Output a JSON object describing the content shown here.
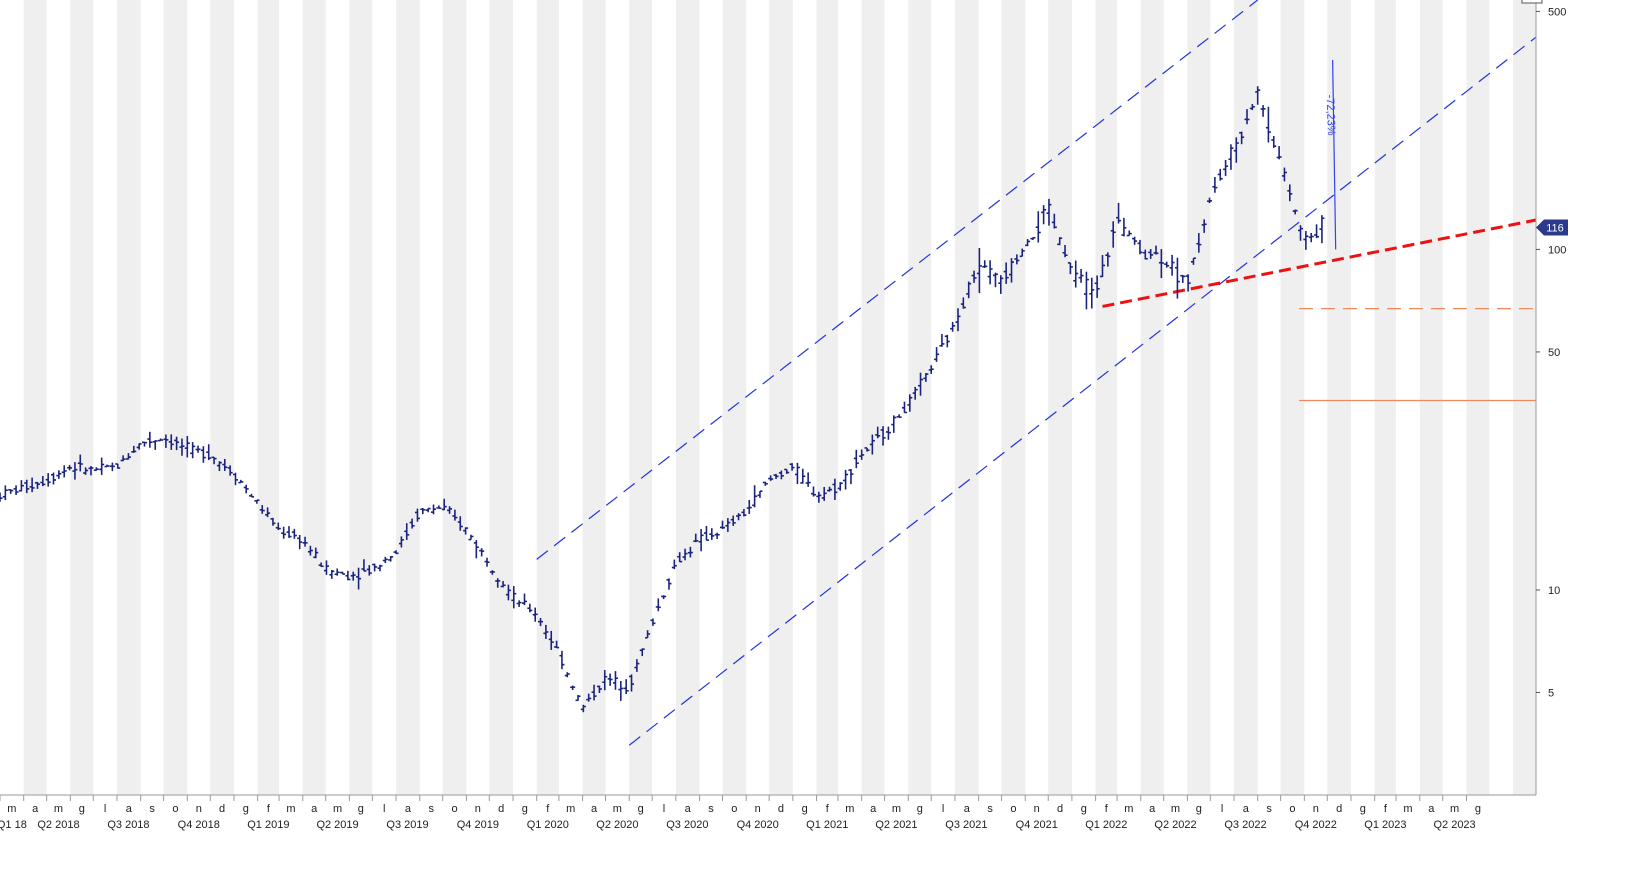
{
  "chart_data": {
    "type": "ohlc",
    "y_scale": "log",
    "ylim": [
      2.5,
      540
    ],
    "y_ticks": [
      5,
      10,
      50,
      100,
      500
    ],
    "y_tick_labels": [
      "5",
      "10",
      "50",
      "100",
      "500"
    ],
    "last_price_badge": "116",
    "last_price": 116,
    "x_start": "2018-03-01",
    "x_end": "2023-08-31",
    "month_labels": [
      "m",
      "a",
      "m",
      "g",
      "l",
      "a",
      "s",
      "o",
      "n",
      "d",
      "g",
      "f",
      "m",
      "a",
      "m",
      "g",
      "l",
      "a",
      "s",
      "o",
      "n",
      "d",
      "g",
      "f",
      "m",
      "a",
      "m",
      "g",
      "l",
      "a",
      "s",
      "o",
      "n",
      "d",
      "g",
      "f",
      "m",
      "a",
      "m",
      "g",
      "l",
      "a",
      "s",
      "o",
      "n",
      "d",
      "g",
      "f",
      "m",
      "a",
      "m",
      "g",
      "l",
      "a",
      "s",
      "o",
      "n",
      "d",
      "g",
      "f",
      "m",
      "a",
      "m",
      "g"
    ],
    "quarter_labels": [
      "Q1 18",
      "Q2 2018",
      "Q3 2018",
      "Q4 2018",
      "Q1 2019",
      "Q2 2019",
      "Q3 2019",
      "Q4 2019",
      "Q1 2020",
      "Q2 2020",
      "Q3 2020",
      "Q4 2020",
      "Q1 2021",
      "Q2 2021",
      "Q3 2021",
      "Q4 2021",
      "Q1 2022",
      "Q2 2022",
      "Q3 2022",
      "Q4 2022",
      "Q1 2023",
      "Q2 2023"
    ],
    "series": [
      {
        "values": [
          {
            "d": "2018-03-01",
            "c": 19
          },
          {
            "d": "2018-04-01",
            "c": 20
          },
          {
            "d": "2018-05-01",
            "c": 21
          },
          {
            "d": "2018-06-01",
            "c": 23
          },
          {
            "d": "2018-07-01",
            "c": 22.5
          },
          {
            "d": "2018-08-01",
            "c": 23
          },
          {
            "d": "2018-09-01",
            "c": 27
          },
          {
            "d": "2018-10-01",
            "c": 28
          },
          {
            "d": "2018-11-01",
            "c": 26
          },
          {
            "d": "2018-12-01",
            "c": 25
          },
          {
            "d": "2019-01-01",
            "c": 22
          },
          {
            "d": "2019-02-01",
            "c": 18
          },
          {
            "d": "2019-03-01",
            "c": 15
          },
          {
            "d": "2019-04-01",
            "c": 14
          },
          {
            "d": "2019-05-01",
            "c": 11.5
          },
          {
            "d": "2019-06-01",
            "c": 11
          },
          {
            "d": "2019-07-01",
            "c": 11.5
          },
          {
            "d": "2019-08-01",
            "c": 13
          },
          {
            "d": "2019-09-01",
            "c": 17
          },
          {
            "d": "2019-10-01",
            "c": 17.5
          },
          {
            "d": "2019-11-01",
            "c": 15
          },
          {
            "d": "2019-12-01",
            "c": 12
          },
          {
            "d": "2020-01-01",
            "c": 9.5
          },
          {
            "d": "2020-02-01",
            "c": 8.5
          },
          {
            "d": "2020-03-01",
            "c": 6.5
          },
          {
            "d": "2020-04-01",
            "c": 4.5
          },
          {
            "d": "2020-05-01",
            "c": 5.5
          },
          {
            "d": "2020-06-01",
            "c": 5.2
          },
          {
            "d": "2020-07-01",
            "c": 8
          },
          {
            "d": "2020-08-01",
            "c": 12
          },
          {
            "d": "2020-09-01",
            "c": 14
          },
          {
            "d": "2020-10-01",
            "c": 15
          },
          {
            "d": "2020-11-01",
            "c": 17
          },
          {
            "d": "2020-12-01",
            "c": 21
          },
          {
            "d": "2021-01-01",
            "c": 23
          },
          {
            "d": "2021-02-01",
            "c": 19
          },
          {
            "d": "2021-03-01",
            "c": 20
          },
          {
            "d": "2021-04-01",
            "c": 25
          },
          {
            "d": "2021-05-01",
            "c": 29
          },
          {
            "d": "2021-06-01",
            "c": 35
          },
          {
            "d": "2021-07-01",
            "c": 45
          },
          {
            "d": "2021-08-01",
            "c": 60
          },
          {
            "d": "2021-09-01",
            "c": 90
          },
          {
            "d": "2021-10-01",
            "c": 80
          },
          {
            "d": "2021-11-01",
            "c": 100
          },
          {
            "d": "2021-12-01",
            "c": 130
          },
          {
            "d": "2022-01-01",
            "c": 85
          },
          {
            "d": "2022-02-01",
            "c": 75
          },
          {
            "d": "2022-03-01",
            "c": 120
          },
          {
            "d": "2022-04-01",
            "c": 100
          },
          {
            "d": "2022-05-01",
            "c": 95
          },
          {
            "d": "2022-06-01",
            "c": 80
          },
          {
            "d": "2022-07-01",
            "c": 140
          },
          {
            "d": "2022-08-01",
            "c": 200
          },
          {
            "d": "2022-09-01",
            "c": 290
          },
          {
            "d": "2022-10-01",
            "c": 180
          },
          {
            "d": "2022-11-01",
            "c": 105
          },
          {
            "d": "2022-11-25",
            "c": 116
          }
        ]
      }
    ],
    "drawings": [
      {
        "kind": "upper-channel",
        "color": "#2233dd",
        "dash": true,
        "from": {
          "d": "2020-02-01",
          "v": 12.3
        },
        "to": {
          "d": "2022-09-01",
          "v": 540
        }
      },
      {
        "kind": "channel-base",
        "color": "#2233dd",
        "dash": true,
        "from": {
          "d": "2020-06-01",
          "v": 3.5
        },
        "to": {
          "d": "2023-08-31",
          "v": 420
        }
      },
      {
        "kind": "support-trend",
        "color": "#ee1111",
        "dash": true,
        "from": {
          "d": "2022-02-10",
          "v": 68
        },
        "to": {
          "d": "2023-08-31",
          "v": 122
        }
      },
      {
        "kind": "level-1",
        "color": "#f08a5d",
        "dash": true,
        "from": {
          "d": "2022-10-25",
          "v": 67
        },
        "to": {
          "d": "2023-08-31",
          "v": 67
        }
      },
      {
        "kind": "level-2",
        "color": "#f08a5d",
        "dash": false,
        "from": {
          "d": "2022-10-25",
          "v": 36
        },
        "to": {
          "d": "2023-08-31",
          "v": 36
        }
      },
      {
        "kind": "measure",
        "color": "#3344ee",
        "dash": false,
        "from": {
          "d": "2022-12-08",
          "v": 360
        },
        "to": {
          "d": "2022-12-12",
          "v": 100
        },
        "label": "-72,23%"
      }
    ],
    "colors": {
      "bars": "#1a237e",
      "band": "#efefef",
      "badge": "#2c3a8c"
    },
    "grid": false
  }
}
